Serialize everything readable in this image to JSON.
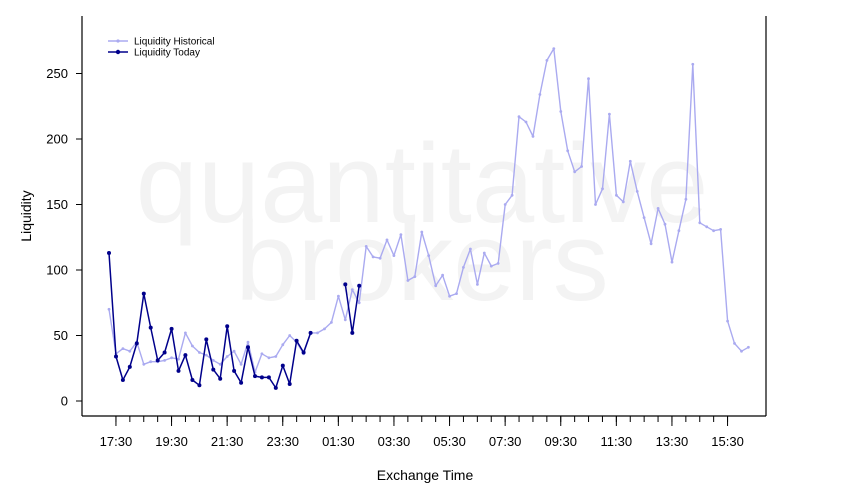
{
  "watermark": {
    "line1": "quantitative",
    "line2": "brokers"
  },
  "colors": {
    "historical": "#aaaaf0",
    "today": "#00008b",
    "axis": "#000000",
    "watermark": "#f3f3f3"
  },
  "chart_data": {
    "type": "line",
    "title": "",
    "xlabel": "Exchange Time",
    "ylabel": "Liquidity",
    "ylim": [
      -10,
      295
    ],
    "grid": false,
    "legend_position": "top-left",
    "x_tick_labels": [
      "17:30",
      "19:30",
      "21:30",
      "23:30",
      "01:30",
      "03:30",
      "05:30",
      "07:30",
      "09:30",
      "11:30",
      "13:30",
      "15:30"
    ],
    "x_tick_positions": [
      1,
      9,
      17,
      25,
      33,
      41,
      49,
      57,
      65,
      73,
      81,
      89
    ],
    "x_minor_ticks": [
      0,
      1,
      2,
      3,
      4,
      5,
      6,
      7,
      8,
      9,
      10,
      11,
      12,
      13,
      14,
      15,
      16,
      17,
      18,
      19,
      20,
      21,
      22,
      23,
      24,
      25,
      26,
      27,
      28,
      29,
      30,
      31,
      32,
      33,
      34,
      35,
      36,
      37,
      38,
      39,
      40,
      41,
      42,
      43,
      44,
      45,
      46,
      47,
      48,
      49,
      50,
      51,
      52,
      53,
      54,
      55,
      56,
      57,
      58,
      59,
      60,
      61,
      62,
      63,
      64,
      65,
      66,
      67,
      68,
      69,
      70,
      71,
      72,
      73,
      74,
      75,
      76,
      77,
      78,
      79,
      80,
      81,
      82,
      83,
      84,
      85,
      86,
      87,
      88,
      89,
      90
    ],
    "x_minor_tick_step": 2,
    "y_ticks": [
      0,
      50,
      100,
      150,
      200,
      250
    ],
    "series": [
      {
        "name": "Liquidity Historical",
        "values": [
          70,
          36,
          40,
          38,
          45,
          28,
          30,
          30,
          31,
          33,
          32,
          52,
          42,
          37,
          35,
          31,
          28,
          34,
          38,
          28,
          45,
          22,
          36,
          33,
          34,
          43,
          50,
          45,
          36,
          52,
          52,
          55,
          60,
          80,
          62,
          85,
          75,
          118,
          110,
          109,
          123,
          111,
          127,
          92,
          95,
          129,
          111,
          88,
          96,
          80,
          82,
          102,
          116,
          89,
          113,
          103,
          105,
          150,
          157,
          217,
          213,
          202,
          234,
          260,
          269,
          221,
          191,
          175,
          179,
          246,
          150,
          162,
          219,
          157,
          152,
          183,
          160,
          140,
          120,
          147,
          135,
          106,
          130,
          154,
          257,
          136,
          133,
          130,
          131,
          61,
          44,
          38,
          41
        ]
      },
      {
        "name": "Liquidity Today",
        "values": [
          113,
          34,
          16,
          26,
          44,
          82,
          56,
          31,
          37,
          55,
          23,
          35,
          16,
          12,
          47,
          24,
          17,
          57,
          23,
          14,
          41,
          19,
          18,
          18,
          10,
          27,
          13,
          46,
          37,
          52,
          null,
          null,
          null,
          null,
          89,
          52,
          88
        ]
      }
    ]
  }
}
